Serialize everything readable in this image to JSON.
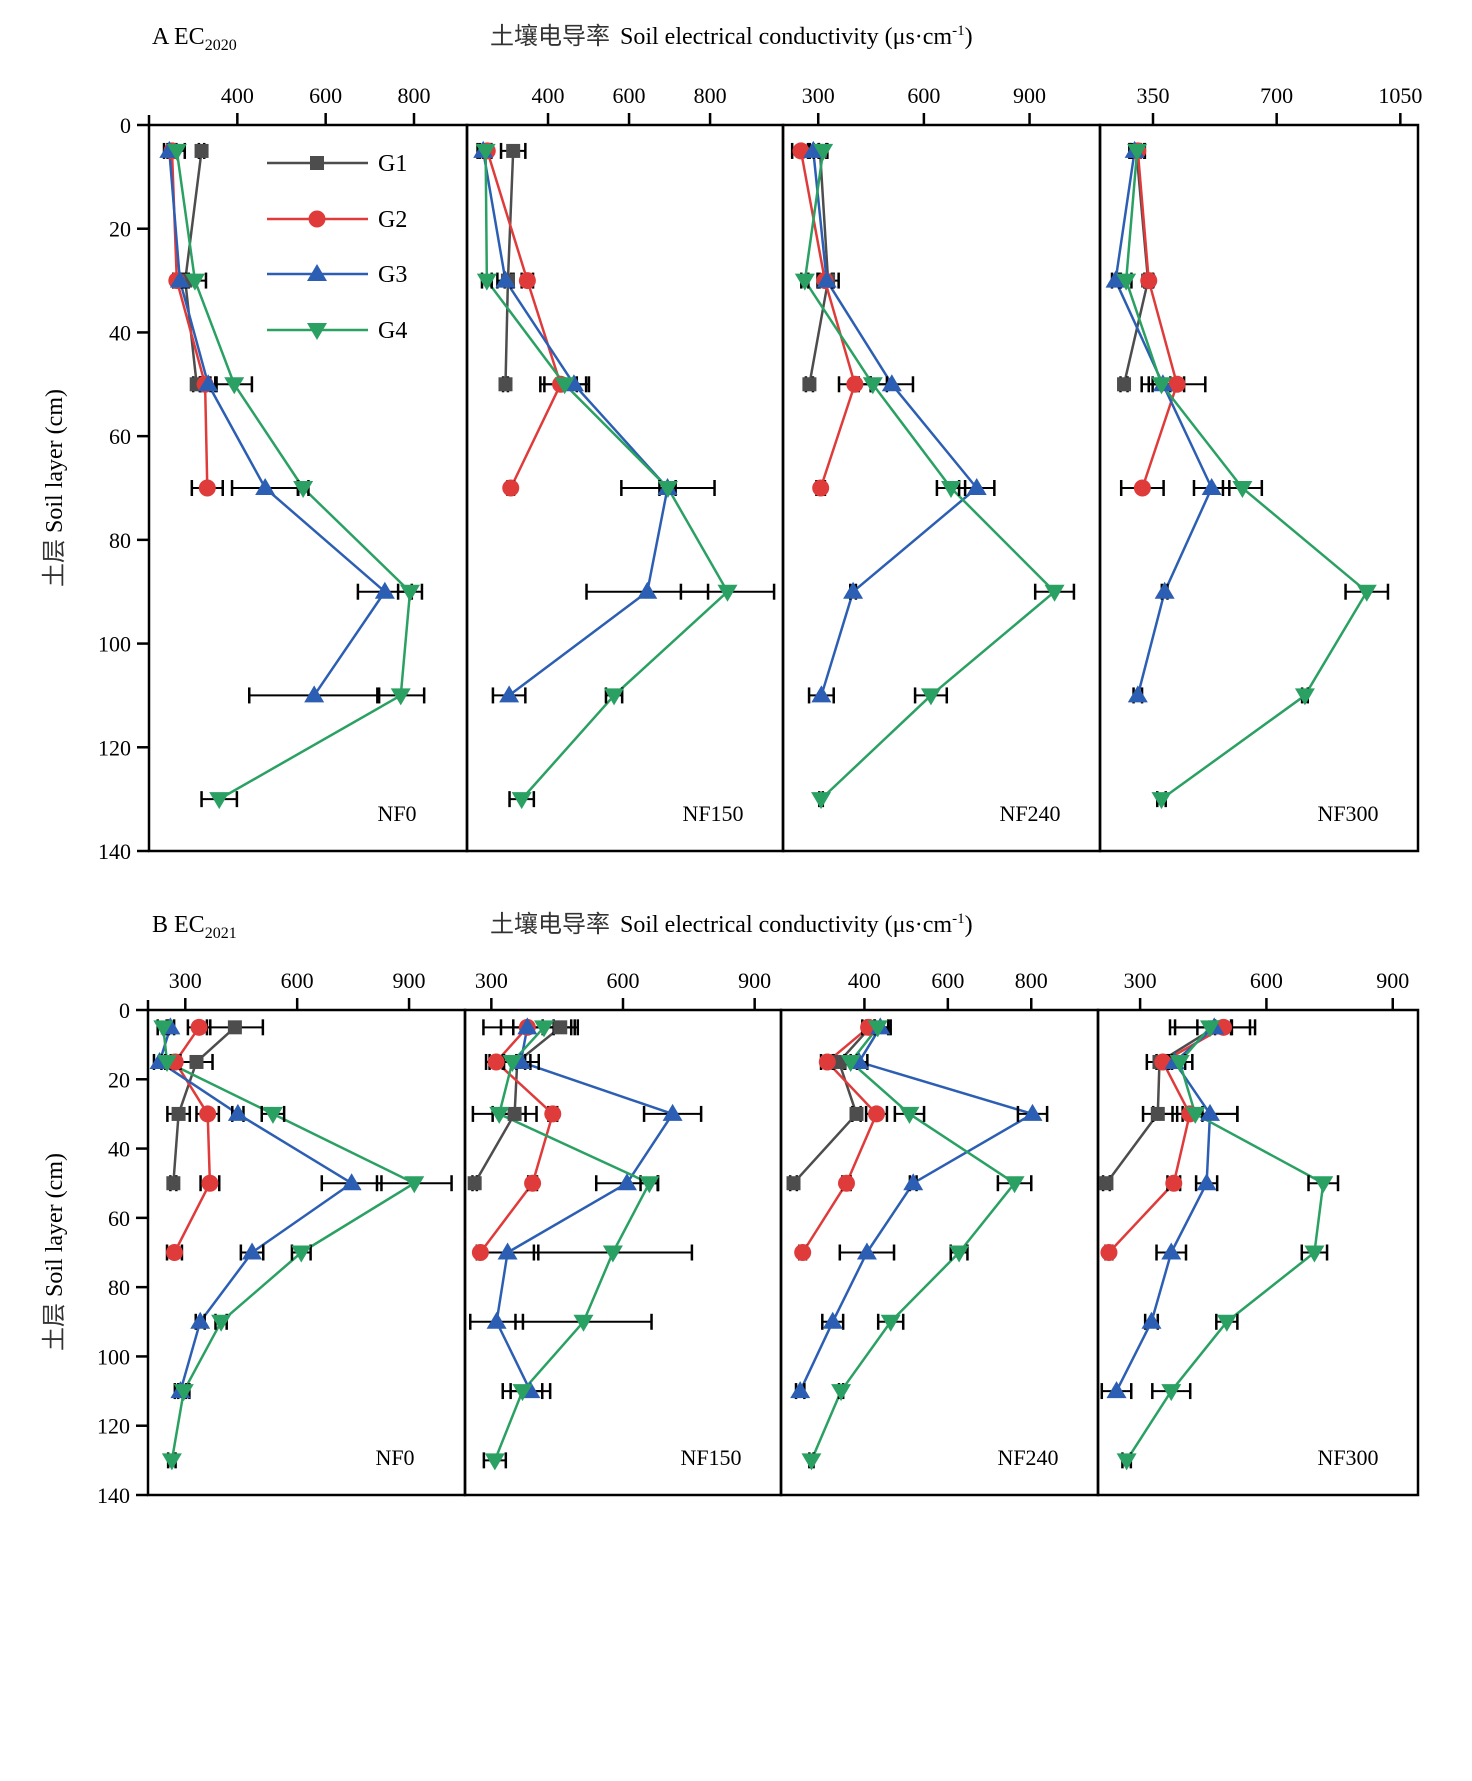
{
  "figure": {
    "legend": [
      {
        "name": "G1",
        "color": "#4d4d4d",
        "marker": "square"
      },
      {
        "name": "G2",
        "color": "#e03b3b",
        "marker": "circle"
      },
      {
        "name": "G3",
        "color": "#2c5fb3",
        "marker": "triangle-up"
      },
      {
        "name": "G4",
        "color": "#2aa163",
        "marker": "triangle-down"
      }
    ],
    "x_title_cn": "土壤电导率",
    "x_title_en": "Soil electrical conductivity (μs·cm",
    "x_title_sup": "-1",
    "x_title_close": ")",
    "y_title_cn": "土层",
    "y_title_en": "Soil layer (cm)"
  },
  "chart_data": [
    {
      "type": "line",
      "panel_group": "A",
      "title": "A   EC",
      "title_sub": "2020",
      "xlabel": "土壤电导率 Soil electrical conductivity (μs·cm-1)",
      "ylabel": "土层 Soil layer (cm)",
      "ylim": [
        0,
        140
      ],
      "y_ticks": [
        0,
        20,
        40,
        60,
        80,
        100,
        120,
        140
      ],
      "y_inverted": true,
      "depths": [
        5,
        30,
        50,
        70,
        90,
        110,
        130
      ],
      "grid": false,
      "legend_position": "top-left panel, upper-middle",
      "panels": [
        {
          "label": "NF0",
          "xlim": [
            200,
            920
          ],
          "x_ticks": [
            400,
            600,
            800
          ],
          "series": [
            {
              "name": "G1",
              "values": [
                319,
                282,
                308,
                null,
                null,
                null,
                null
              ],
              "errors": [
                6,
                8,
                8,
                null,
                null,
                null,
                null
              ]
            },
            {
              "name": "G2",
              "values": [
                252,
                263,
                327,
                332,
                null,
                null,
                null
              ],
              "errors": [
                10,
                8,
                12,
                35,
                null,
                null,
                null
              ]
            },
            {
              "name": "G3",
              "values": [
                246,
                270,
                334,
                463,
                734,
                574,
                null
              ],
              "errors": [
                12,
                14,
                16,
                75,
                61,
                147,
                null
              ]
            },
            {
              "name": "G4",
              "values": [
                263,
                304,
                393,
                549,
                791,
                770,
                359
              ],
              "errors": [
                18,
                25,
                40,
                12,
                27,
                53,
                40
              ]
            }
          ]
        },
        {
          "label": "NF150",
          "xlim": [
            200,
            980
          ],
          "x_ticks": [
            400,
            600,
            800
          ],
          "series": [
            {
              "name": "G1",
              "values": [
                314,
                301,
                295,
                null,
                null,
                null,
                null
              ],
              "errors": [
                30,
                8,
                6,
                null,
                null,
                null,
                null
              ]
            },
            {
              "name": "G2",
              "values": [
                250,
                349,
                431,
                308,
                null,
                null,
                null
              ],
              "errors": [
                10,
                14,
                40,
                8,
                null,
                null,
                null
              ]
            },
            {
              "name": "G3",
              "values": [
                240,
                295,
                464,
                695,
                645,
                304,
                null
              ],
              "errors": [
                14,
                20,
                30,
                20,
                150,
                40,
                null
              ]
            },
            {
              "name": "G4",
              "values": [
                246,
                249,
                441,
                696,
                843,
                563,
                335
              ],
              "errors": [
                14,
                12,
                60,
                115,
                115,
                20,
                30
              ]
            }
          ]
        },
        {
          "label": "NF240",
          "xlim": [
            200,
            1100
          ],
          "x_ticks": [
            300,
            600,
            900
          ],
          "series": [
            {
              "name": "G1",
              "values": [
                305,
                328,
                275,
                null,
                null,
                null,
                null
              ],
              "errors": [
                18,
                30,
                10,
                null,
                null,
                null,
                null
              ]
            },
            {
              "name": "G2",
              "values": [
                251,
                319,
                404,
                307,
                null,
                null,
                null
              ],
              "errors": [
                25,
                20,
                45,
                12,
                null,
                null,
                null
              ]
            },
            {
              "name": "G3",
              "values": [
                286,
                324,
                509,
                750,
                399,
                309,
                null
              ],
              "errors": [
                15,
                20,
                60,
                50,
                8,
                35,
                null
              ]
            },
            {
              "name": "G4",
              "values": [
                314,
                262,
                455,
                677,
                971,
                620,
                308
              ],
              "errors": [
                12,
                10,
                40,
                40,
                55,
                45,
                5
              ]
            }
          ]
        },
        {
          "label": "NF300",
          "xlim": [
            200,
            1100
          ],
          "x_ticks": [
            350,
            700,
            1050
          ],
          "series": [
            {
              "name": "G1",
              "values": [
                303,
                336,
                268,
                null,
                null,
                null,
                null
              ],
              "errors": [
                12,
                10,
                10,
                null,
                null,
                null,
                null
              ]
            },
            {
              "name": "G2",
              "values": [
                307,
                338,
                418,
                320,
                null,
                null,
                null
              ],
              "errors": [
                20,
                12,
                80,
                60,
                null,
                null,
                null
              ]
            },
            {
              "name": "G3",
              "values": [
                298,
                244,
                378,
                516,
                383,
                307,
                null
              ],
              "errors": [
                15,
                10,
                60,
                50,
                8,
                12,
                null
              ]
            },
            {
              "name": "G4",
              "values": [
                305,
                274,
                374,
                603,
                955,
                780,
                374
              ],
              "errors": [
                20,
                15,
                25,
                55,
                60,
                8,
                12
              ]
            }
          ]
        }
      ]
    },
    {
      "type": "line",
      "panel_group": "B",
      "title": "B   EC",
      "title_sub": "2021",
      "xlabel": "土壤电导率 Soil electrical conductivity (μs·cm-1)",
      "ylabel": "土层 Soil layer (cm)",
      "ylim": [
        0,
        140
      ],
      "y_ticks": [
        0,
        20,
        40,
        60,
        80,
        100,
        120,
        140
      ],
      "y_inverted": true,
      "depths": [
        5,
        15,
        30,
        50,
        70,
        90,
        110,
        130
      ],
      "grid": false,
      "panels": [
        {
          "label": "NF0",
          "xlim": [
            200,
            1050
          ],
          "x_ticks": [
            300,
            600,
            900
          ],
          "series": [
            {
              "name": "G1",
              "values": [
                433,
                330,
                282,
                268,
                null,
                null,
                null,
                null
              ],
              "errors": [
                75,
                43,
                30,
                8,
                null,
                null,
                null,
                null
              ]
            },
            {
              "name": "G2",
              "values": [
                337,
                273,
                360,
                366,
                271,
                null,
                null,
                null
              ],
              "errors": [
                30,
                12,
                30,
                25,
                20,
                null,
                null,
                null
              ]
            },
            {
              "name": "G3",
              "values": [
                260,
                231,
                441,
                746,
                479,
                340,
                287,
                null
              ],
              "errors": [
                10,
                15,
                15,
                80,
                30,
                12,
                15,
                null
              ]
            },
            {
              "name": "G4",
              "values": [
                241,
                251,
                535,
                914,
                611,
                396,
                296,
                264
              ],
              "errors": [
                15,
                15,
                30,
                100,
                25,
                15,
                15,
                10
              ]
            }
          ]
        },
        {
          "label": "NF150",
          "xlim": [
            240,
            960
          ],
          "x_ticks": [
            300,
            600,
            900
          ],
          "series": [
            {
              "name": "G1",
              "values": [
                457,
                359,
                353,
                262,
                null,
                null,
                null,
                null
              ],
              "errors": [
                40,
                30,
                50,
                5,
                null,
                null,
                null,
                null
              ]
            },
            {
              "name": "G2",
              "values": [
                382,
                311,
                440,
                394,
                275,
                null,
                null,
                null
              ],
              "errors": [
                60,
                15,
                10,
                10,
                5,
                null,
                null,
                null
              ]
            },
            {
              "name": "G3",
              "values": [
                382,
                367,
                713,
                609,
                337,
                312,
                389,
                null
              ],
              "errors": [
                100,
                10,
                65,
                70,
                70,
                60,
                45,
                null
              ]
            },
            {
              "name": "G4",
              "values": [
                420,
                348,
                318,
                660,
                577,
                510,
                371,
                308
              ],
              "errors": [
                70,
                60,
                60,
                20,
                180,
                155,
                45,
                25
              ]
            }
          ]
        },
        {
          "label": "NF240",
          "xlim": [
            200,
            960
          ],
          "x_ticks": [
            400,
            600,
            800
          ],
          "series": [
            {
              "name": "G1",
              "values": [
                414,
                339,
                381,
                230,
                null,
                null,
                null,
                null
              ],
              "errors": [
                10,
                15,
                10,
                8,
                null,
                null,
                null,
                null
              ]
            },
            {
              "name": "G2",
              "values": [
                410,
                311,
                429,
                357,
                252,
                null,
                null,
                null
              ],
              "errors": [
                15,
                15,
                25,
                10,
                8,
                null,
                null,
                null
              ]
            },
            {
              "name": "G3",
              "values": [
                438,
                387,
                803,
                517,
                406,
                324,
                246,
                null
              ],
              "errors": [
                25,
                20,
                35,
                8,
                65,
                25,
                10,
                null
              ]
            },
            {
              "name": "G4",
              "values": [
                432,
                367,
                508,
                760,
                627,
                463,
                344,
                273
              ],
              "errors": [
                25,
                15,
                35,
                40,
                20,
                30,
                5,
                5
              ]
            }
          ]
        },
        {
          "label": "NF300",
          "xlim": [
            200,
            960
          ],
          "x_ticks": [
            300,
            600,
            900
          ],
          "series": [
            {
              "name": "G1",
              "values": [
                478,
                346,
                342,
                220,
                null,
                null,
                null,
                null
              ],
              "errors": [
                95,
                30,
                35,
                8,
                null,
                null,
                null,
                null
              ]
            },
            {
              "name": "G2",
              "values": [
                498,
                354,
                418,
                380,
                226,
                null,
                null,
                null
              ],
              "errors": [
                20,
                15,
                30,
                15,
                8,
                null,
                null,
                null
              ]
            },
            {
              "name": "G3",
              "values": [
                476,
                382,
                466,
                458,
                374,
                327,
                244,
                null
              ],
              "errors": [
                40,
                25,
                65,
                25,
                35,
                15,
                35,
                null
              ]
            },
            {
              "name": "G4",
              "values": [
                466,
                394,
                431,
                735,
                714,
                506,
                374,
                268
              ],
              "errors": [
                95,
                30,
                100,
                35,
                30,
                25,
                45,
                10
              ]
            }
          ]
        }
      ]
    }
  ]
}
